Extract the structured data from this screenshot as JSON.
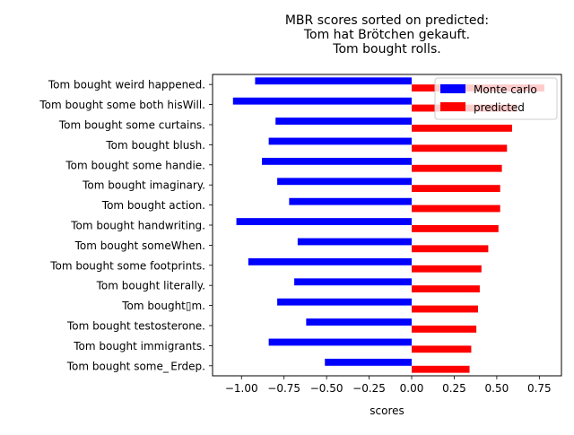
{
  "chart_data": {
    "type": "bar",
    "orientation": "horizontal",
    "title": "MBR scores sorted on predicted:\nTom hat Brötchen gekauft.\nTom bought rolls.",
    "xlabel": "scores",
    "ylabel": "",
    "xlim": [
      -1.17,
      0.88
    ],
    "xticks": [
      -1.0,
      -0.75,
      -0.5,
      -0.25,
      0.0,
      0.25,
      0.5,
      0.75
    ],
    "xtick_labels": [
      "−1.00",
      "−0.75",
      "−0.50",
      "−0.25",
      "0.00",
      "0.25",
      "0.50",
      "0.75"
    ],
    "grid": false,
    "legend_position": "top-right",
    "categories": [
      "Tom bought weird happened.",
      "Tom bought some both hisWill.",
      "Tom bought some curtains.",
      "Tom bought blush.",
      "Tom bought some handie.",
      "Tom bought imaginary.",
      "Tom bought action.",
      "Tom bought handwriting.",
      "Tom bought someWhen.",
      "Tom bought some footprints.",
      "Tom bought literally.",
      "Tom bought▯m.",
      "Tom bought testosterone.",
      "Tom bought immigrants.",
      "Tom bought some_ Erdep."
    ],
    "series": [
      {
        "name": "Monte carlo",
        "color": "#0000ff",
        "values": [
          -0.92,
          -1.05,
          -0.8,
          -0.84,
          -0.88,
          -0.79,
          -0.72,
          -1.03,
          -0.67,
          -0.96,
          -0.69,
          -0.79,
          -0.62,
          -0.84,
          -0.51
        ]
      },
      {
        "name": "predicted",
        "color": "#ff0000",
        "values": [
          0.78,
          0.62,
          0.59,
          0.56,
          0.53,
          0.52,
          0.52,
          0.51,
          0.45,
          0.41,
          0.4,
          0.39,
          0.38,
          0.35,
          0.34
        ]
      }
    ]
  }
}
